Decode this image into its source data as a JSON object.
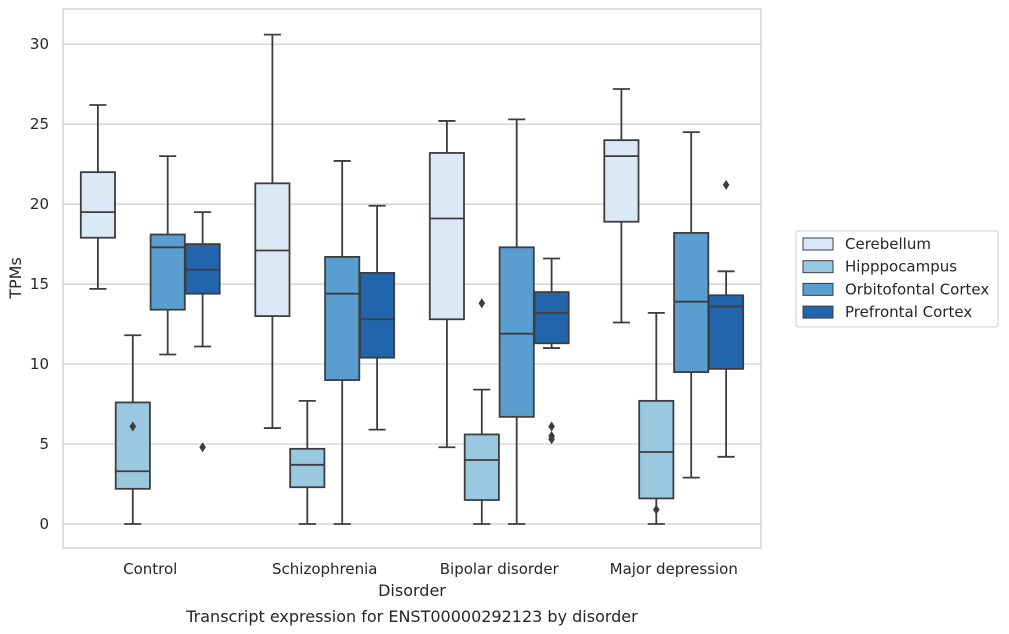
{
  "caption": "Transcript expression for ENST00000292123 by disorder",
  "chart_data": {
    "type": "box",
    "xlabel": "Disorder",
    "ylabel": "TPMs",
    "ylim": [
      -1.5,
      32.2
    ],
    "yticks": [
      0,
      5,
      10,
      15,
      20,
      25,
      30
    ],
    "grid": "horizontal",
    "legend_position": "right",
    "categories": [
      "Control",
      "Schizophrenia",
      "Bipolar disorder",
      "Major depression"
    ],
    "series": [
      {
        "name": "Cerebellum",
        "color": "#dbe9f6",
        "boxes": [
          {
            "whisker_low": 14.7,
            "q1": 17.9,
            "median": 19.5,
            "q3": 22.0,
            "whisker_high": 26.2,
            "outliers": []
          },
          {
            "whisker_low": 6.0,
            "q1": 13.0,
            "median": 17.1,
            "q3": 21.3,
            "whisker_high": 30.6,
            "outliers": []
          },
          {
            "whisker_low": 4.8,
            "q1": 12.8,
            "median": 19.1,
            "q3": 23.2,
            "whisker_high": 25.2,
            "outliers": []
          },
          {
            "whisker_low": 12.6,
            "q1": 18.9,
            "median": 23.0,
            "q3": 24.0,
            "whisker_high": 27.2,
            "outliers": []
          }
        ]
      },
      {
        "name": "Hipppocampus",
        "color": "#9ac8e0",
        "boxes": [
          {
            "whisker_low": 0.0,
            "q1": 2.2,
            "median": 3.3,
            "q3": 7.6,
            "whisker_high": 11.8,
            "outliers": [
              6.1
            ]
          },
          {
            "whisker_low": 0.0,
            "q1": 2.3,
            "median": 3.7,
            "q3": 4.7,
            "whisker_high": 7.7,
            "outliers": []
          },
          {
            "whisker_low": 0.0,
            "q1": 1.5,
            "median": 4.0,
            "q3": 5.6,
            "whisker_high": 8.4,
            "outliers": [
              13.8
            ]
          },
          {
            "whisker_low": 0.0,
            "q1": 1.6,
            "median": 4.5,
            "q3": 7.7,
            "whisker_high": 13.2,
            "outliers": [
              0.9
            ]
          }
        ]
      },
      {
        "name": "Orbitofontal Cortex",
        "color": "#5a9ecf",
        "boxes": [
          {
            "whisker_low": 10.6,
            "q1": 13.4,
            "median": 17.3,
            "q3": 18.1,
            "whisker_high": 23.0,
            "outliers": []
          },
          {
            "whisker_low": 0.0,
            "q1": 9.0,
            "median": 14.4,
            "q3": 16.7,
            "whisker_high": 22.7,
            "outliers": []
          },
          {
            "whisker_low": 0.0,
            "q1": 6.7,
            "median": 11.9,
            "q3": 17.3,
            "whisker_high": 25.3,
            "outliers": []
          },
          {
            "whisker_low": 2.9,
            "q1": 9.5,
            "median": 13.9,
            "q3": 18.2,
            "whisker_high": 24.5,
            "outliers": []
          }
        ]
      },
      {
        "name": "Prefrontal Cortex",
        "color": "#2166ac",
        "boxes": [
          {
            "whisker_low": 11.1,
            "q1": 14.4,
            "median": 15.9,
            "q3": 17.5,
            "whisker_high": 19.5,
            "outliers": [
              4.8
            ]
          },
          {
            "whisker_low": 5.9,
            "q1": 10.4,
            "median": 12.8,
            "q3": 15.7,
            "whisker_high": 19.9,
            "outliers": []
          },
          {
            "whisker_low": 11.0,
            "q1": 11.3,
            "median": 13.2,
            "q3": 14.5,
            "whisker_high": 16.6,
            "outliers": [
              6.1,
              5.5,
              5.3
            ]
          },
          {
            "whisker_low": 4.2,
            "q1": 9.7,
            "median": 13.6,
            "q3": 14.3,
            "whisker_high": 15.8,
            "outliers": [
              21.2
            ]
          }
        ]
      }
    ]
  }
}
